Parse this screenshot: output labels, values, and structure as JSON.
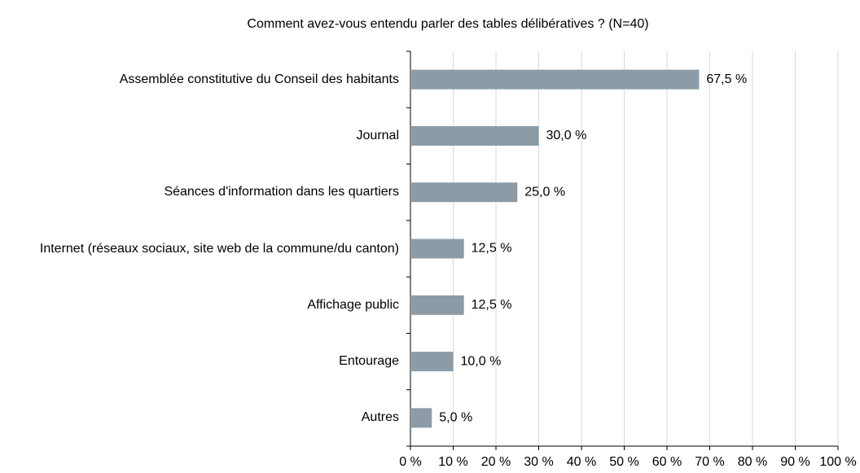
{
  "chart_data": {
    "type": "bar",
    "orientation": "horizontal",
    "title": "Comment avez-vous entendu parler des tables délibératives ? (N=40)",
    "categories": [
      "Assemblée constitutive du Conseil des habitants",
      "Journal",
      "Séances d'information dans les quartiers",
      "Internet (réseaux sociaux, site web de la commune/du canton)",
      "Affichage public",
      "Entourage",
      "Autres"
    ],
    "values": [
      67.5,
      30.0,
      25.0,
      12.5,
      12.5,
      10.0,
      5.0
    ],
    "value_labels": [
      "67,5 %",
      "30,0 %",
      "25,0 %",
      "12,5 %",
      "12,5 %",
      "10,0 %",
      "5,0 %"
    ],
    "color": "#8c9ba5",
    "xlim": [
      0,
      100
    ],
    "xticks": [
      {
        "value": 0,
        "label": "0 %"
      },
      {
        "value": 10,
        "label": "10 %"
      },
      {
        "value": 20,
        "label": "20 %"
      },
      {
        "value": 30,
        "label": "30 %"
      },
      {
        "value": 40,
        "label": "40 %"
      },
      {
        "value": 50,
        "label": "50 %"
      },
      {
        "value": 60,
        "label": "60 %"
      },
      {
        "value": 70,
        "label": "70 %"
      },
      {
        "value": 80,
        "label": "80 %"
      },
      {
        "value": 90,
        "label": "90 %"
      },
      {
        "value": 100,
        "label": "100 %"
      }
    ],
    "grid": true
  }
}
